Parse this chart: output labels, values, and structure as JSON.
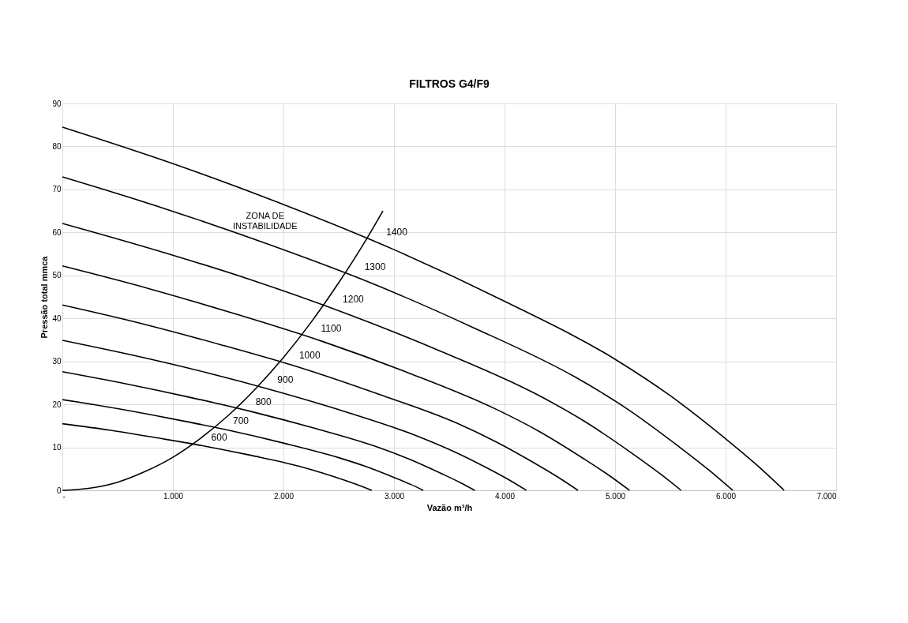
{
  "chart_data": {
    "type": "line",
    "title": "FILTROS G4/F9",
    "xlabel": "Vazão m³/h",
    "ylabel": "Pressão total mmca",
    "xlim": [
      0,
      7000
    ],
    "ylim": [
      0,
      90
    ],
    "xticks": [
      {
        "value": 0,
        "label": "-"
      },
      {
        "value": 1000,
        "label": "1.000"
      },
      {
        "value": 2000,
        "label": "2.000"
      },
      {
        "value": 3000,
        "label": "3.000"
      },
      {
        "value": 4000,
        "label": "4.000"
      },
      {
        "value": 5000,
        "label": "5.000"
      },
      {
        "value": 6000,
        "label": "6.000"
      },
      {
        "value": 7000,
        "label": "7.000"
      }
    ],
    "yticks": [
      0,
      10,
      20,
      30,
      40,
      50,
      60,
      70,
      80,
      90
    ],
    "grid": true,
    "legend": false,
    "marker": "none",
    "line_style": "solid",
    "series": [
      {
        "name": "1400",
        "color": "#000000",
        "x": [
          0,
          1000,
          2000,
          3000,
          4000,
          5000,
          5500,
          6000,
          6300,
          6530
        ],
        "values": [
          84.5,
          76,
          66.5,
          56,
          44,
          30.5,
          22,
          12,
          5.5,
          0
        ]
      },
      {
        "name": "1300",
        "color": "#000000",
        "x": [
          0,
          929,
          1857,
          2786,
          3714,
          4643,
          5107,
          5571,
          5850,
          6064
        ],
        "values": [
          72.9,
          65.5,
          57.3,
          48.3,
          37.9,
          26.3,
          19.0,
          10.3,
          4.7,
          0
        ]
      },
      {
        "name": "1200",
        "color": "#000000",
        "x": [
          0,
          857,
          1714,
          2571,
          3429,
          4286,
          4714,
          5143,
          5400,
          5597
        ],
        "values": [
          62.1,
          55.8,
          48.9,
          41.1,
          32.3,
          22.4,
          16.2,
          8.8,
          4.0,
          0
        ]
      },
      {
        "name": "1100",
        "color": "#000000",
        "x": [
          0,
          786,
          1571,
          2357,
          3143,
          3929,
          4321,
          4714,
          4950,
          5131
        ],
        "values": [
          52.2,
          46.9,
          41.0,
          34.6,
          27.2,
          18.8,
          13.6,
          7.4,
          3.4,
          0
        ]
      },
      {
        "name": "1000",
        "color": "#000000",
        "x": [
          0,
          714,
          1429,
          2143,
          2857,
          3571,
          3929,
          4286,
          4500,
          4664
        ],
        "values": [
          43.1,
          38.8,
          33.9,
          28.6,
          22.4,
          15.6,
          11.2,
          6.1,
          2.8,
          0
        ]
      },
      {
        "name": "900",
        "color": "#000000",
        "x": [
          0,
          643,
          1286,
          1929,
          2571,
          3214,
          3536,
          3857,
          4050,
          4198
        ],
        "values": [
          34.9,
          31.4,
          27.5,
          23.1,
          18.2,
          12.6,
          9.1,
          5.0,
          2.3,
          0
        ]
      },
      {
        "name": "800",
        "color": "#000000",
        "x": [
          0,
          571,
          1143,
          1714,
          2286,
          2857,
          3143,
          3429,
          3600,
          3731
        ],
        "values": [
          27.6,
          24.8,
          21.7,
          18.3,
          14.4,
          10.0,
          7.2,
          3.9,
          1.8,
          0
        ]
      },
      {
        "name": "700",
        "color": "#000000",
        "x": [
          0,
          500,
          1000,
          1500,
          2000,
          2500,
          2750,
          3000,
          3150,
          3265
        ],
        "values": [
          21.1,
          19.0,
          16.6,
          14.0,
          11.0,
          7.6,
          5.5,
          3.0,
          1.4,
          0
        ]
      },
      {
        "name": "600",
        "color": "#000000",
        "x": [
          0,
          429,
          857,
          1286,
          1714,
          2143,
          2357,
          2571,
          2700,
          2799
        ],
        "values": [
          15.5,
          14.0,
          12.2,
          10.3,
          8.1,
          5.6,
          4.0,
          2.2,
          1.0,
          0
        ]
      },
      {
        "color": "#000000",
        "x": [
          0,
          250,
          500,
          750,
          1000,
          1250,
          1500,
          1750,
          2000,
          2250,
          2500,
          2750,
          2900
        ],
        "values": [
          0,
          0.5,
          1.9,
          4.4,
          7.7,
          12.1,
          17.4,
          23.7,
          30.9,
          39.1,
          48.3,
          58.4,
          65
        ]
      }
    ],
    "annotations": [
      "ZONA DE\nINSTABILIDADE"
    ]
  }
}
